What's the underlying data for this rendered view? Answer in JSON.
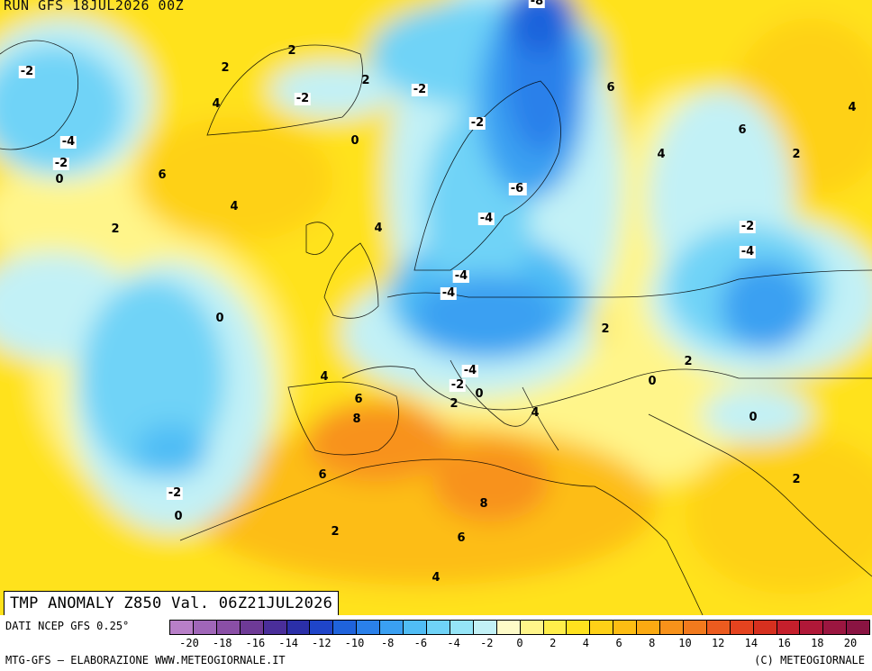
{
  "header": {
    "run_label": "RUN GFS 18JUL2026 00Z"
  },
  "product": {
    "title": "TMP ANOMALY Z850 Val. 06Z21JUL2026"
  },
  "footer": {
    "data_source": "DATI NCEP GFS 0.25°",
    "credit_left": "MTG-GFS – ELABORAZIONE WWW.METEOGIORNALE.IT",
    "credit_right": "(C) METEOGIORNALE"
  },
  "colorbar": {
    "colors": [
      "#b87fc8",
      "#a066b8",
      "#8a4fa6",
      "#6e3a96",
      "#4a2e9a",
      "#2b2fa8",
      "#1f45c9",
      "#1f63dc",
      "#2a80ea",
      "#3aa0f2",
      "#50bdf5",
      "#6fd3f7",
      "#95e5f7",
      "#c2f1f6",
      "#fefbc8",
      "#fff58a",
      "#ffee4a",
      "#ffe21e",
      "#fed117",
      "#fdbd13",
      "#fbaa12",
      "#f8921a",
      "#f27a1d",
      "#ec5b1f",
      "#e5431f",
      "#d6301f",
      "#c51f2c",
      "#b01838",
      "#9b1640",
      "#8a1442"
    ],
    "tick_labels": [
      "-20",
      "-18",
      "-16",
      "-14",
      "-12",
      "-10",
      "-8",
      "-6",
      "-4",
      "-2",
      "0",
      "2",
      "4",
      "6",
      "8",
      "10",
      "12",
      "14",
      "16",
      "18",
      "20"
    ]
  },
  "contour_labels": [
    "-2",
    "-4",
    "-2",
    "2",
    "2",
    "0",
    "-2",
    "4",
    "2",
    "-2",
    "-8",
    "-2",
    "6",
    "-2",
    "-4",
    "-2",
    "0",
    "6",
    "2",
    "4",
    "0",
    "4",
    "-6",
    "6",
    "4",
    "2",
    "4",
    "-4",
    "-2",
    "-4",
    "-4",
    "-4",
    "-2",
    "0",
    "2",
    "-4",
    "0",
    "2",
    "0",
    "2",
    "4",
    "6",
    "4",
    "8",
    "-2",
    "0",
    "6",
    "2",
    "8",
    "6",
    "4",
    "2",
    "0"
  ]
}
